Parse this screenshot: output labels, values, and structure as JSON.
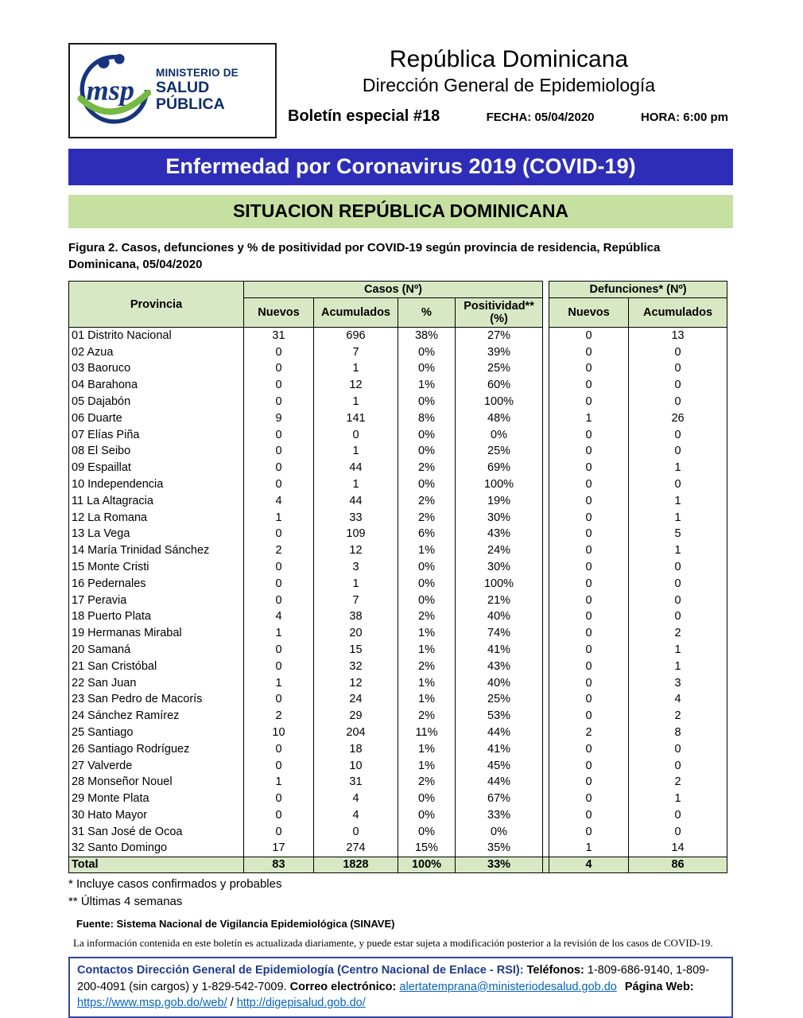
{
  "header": {
    "ministry_line1": "MINISTERIO DE",
    "ministry_line2": "SALUD PÚBLICA",
    "title1": "República Dominicana",
    "title2": "Dirección General de Epidemiología",
    "bulletin": "Boletín especial #18",
    "fecha": "FECHA: 05/04/2020",
    "hora": "HORA: 6:00 pm"
  },
  "banners": {
    "covid_title": "Enfermedad por Coronavirus 2019 (COVID-19)",
    "situation_title": "SITUACION REPÚBLICA DOMINICANA",
    "covid_bg": "#2d2db8",
    "situation_bg": "#c6e0a2"
  },
  "figure_caption": "Figura 2. Casos, defunciones y % de positividad por COVID-19 según provincia de residencia, República Dominicana, 05/04/2020",
  "table": {
    "header_bg": "#d9e8c4",
    "provincia_header": "Provincia",
    "casos_group_header": "Casos (Nº)",
    "defunciones_group_header": "Defunciones* (Nº)",
    "subheaders": [
      "Nuevos",
      "Acumulados",
      "%",
      "Positividad** (%)",
      "Nuevos",
      "Acumulados"
    ],
    "rows": [
      [
        "01 Distrito Nacional",
        "31",
        "696",
        "38%",
        "27%",
        "0",
        "13"
      ],
      [
        "02 Azua",
        "0",
        "7",
        "0%",
        "39%",
        "0",
        "0"
      ],
      [
        "03 Baoruco",
        "0",
        "1",
        "0%",
        "25%",
        "0",
        "0"
      ],
      [
        "04 Barahona",
        "0",
        "12",
        "1%",
        "60%",
        "0",
        "0"
      ],
      [
        "05 Dajabón",
        "0",
        "1",
        "0%",
        "100%",
        "0",
        "0"
      ],
      [
        "06 Duarte",
        "9",
        "141",
        "8%",
        "48%",
        "1",
        "26"
      ],
      [
        "07 Elías Piña",
        "0",
        "0",
        "0%",
        "0%",
        "0",
        "0"
      ],
      [
        "08 El Seibo",
        "0",
        "1",
        "0%",
        "25%",
        "0",
        "0"
      ],
      [
        "09 Espaillat",
        "0",
        "44",
        "2%",
        "69%",
        "0",
        "1"
      ],
      [
        "10 Independencia",
        "0",
        "1",
        "0%",
        "100%",
        "0",
        "0"
      ],
      [
        "11 La Altagracia",
        "4",
        "44",
        "2%",
        "19%",
        "0",
        "1"
      ],
      [
        "12 La Romana",
        "1",
        "33",
        "2%",
        "30%",
        "0",
        "1"
      ],
      [
        "13 La Vega",
        "0",
        "109",
        "6%",
        "43%",
        "0",
        "5"
      ],
      [
        "14 María Trinidad Sánchez",
        "2",
        "12",
        "1%",
        "24%",
        "0",
        "1"
      ],
      [
        "15 Monte Cristi",
        "0",
        "3",
        "0%",
        "30%",
        "0",
        "0"
      ],
      [
        "16 Pedernales",
        "0",
        "1",
        "0%",
        "100%",
        "0",
        "0"
      ],
      [
        "17 Peravia",
        "0",
        "7",
        "0%",
        "21%",
        "0",
        "0"
      ],
      [
        "18 Puerto Plata",
        "4",
        "38",
        "2%",
        "40%",
        "0",
        "0"
      ],
      [
        "19 Hermanas Mirabal",
        "1",
        "20",
        "1%",
        "74%",
        "0",
        "2"
      ],
      [
        "20 Samaná",
        "0",
        "15",
        "1%",
        "41%",
        "0",
        "1"
      ],
      [
        "21 San Cristóbal",
        "0",
        "32",
        "2%",
        "43%",
        "0",
        "1"
      ],
      [
        "22 San Juan",
        "1",
        "12",
        "1%",
        "40%",
        "0",
        "3"
      ],
      [
        "23 San Pedro de Macorís",
        "0",
        "24",
        "1%",
        "25%",
        "0",
        "4"
      ],
      [
        "24 Sánchez Ramírez",
        "2",
        "29",
        "2%",
        "53%",
        "0",
        "2"
      ],
      [
        "25 Santiago",
        "10",
        "204",
        "11%",
        "44%",
        "2",
        "8"
      ],
      [
        "26 Santiago Rodríguez",
        "0",
        "18",
        "1%",
        "41%",
        "0",
        "0"
      ],
      [
        "27 Valverde",
        "0",
        "10",
        "1%",
        "45%",
        "0",
        "0"
      ],
      [
        "28 Monseñor Nouel",
        "1",
        "31",
        "2%",
        "44%",
        "0",
        "2"
      ],
      [
        "29 Monte Plata",
        "0",
        "4",
        "0%",
        "67%",
        "0",
        "1"
      ],
      [
        "30 Hato Mayor",
        "0",
        "4",
        "0%",
        "33%",
        "0",
        "0"
      ],
      [
        "31 San José de Ocoa",
        "0",
        "0",
        "0%",
        "0%",
        "0",
        "0"
      ],
      [
        "32 Santo Domingo",
        "17",
        "274",
        "15%",
        "35%",
        "1",
        "14"
      ]
    ],
    "total_row": [
      "Total",
      "83",
      "1828",
      "100%",
      "33%",
      "4",
      "86"
    ]
  },
  "footnotes": {
    "note1": "* Incluye casos confirmados y probables",
    "note2": "** Últimas 4 semanas",
    "fuente": "Fuente: Sistema Nacional de Vigilancia Epidemiológica (SINAVE)",
    "disclaimer": "La información contenida en este boletín es actualizada diariamente, y puede estar sujeta a modificación posterior a la revisión de los casos de COVID-19."
  },
  "contact": {
    "main_label": "Contactos Dirección General de Epidemiología (Centro Nacional de Enlace - RSI):",
    "tel_label": "Teléfonos:",
    "tel_numbers": "1-809-686-9140, 1-809-200-4091 (sin cargos) y 1-829-542-7009.",
    "email_label": "Correo electrónico:",
    "email": "alertatemprana@ministeriodesalud.gob.do",
    "web_label": "Página Web:",
    "web_url1": "https://www.msp.gob.do/web/",
    "web_separator": "/",
    "web_url2": "http://digepisalud.gob.do/"
  }
}
